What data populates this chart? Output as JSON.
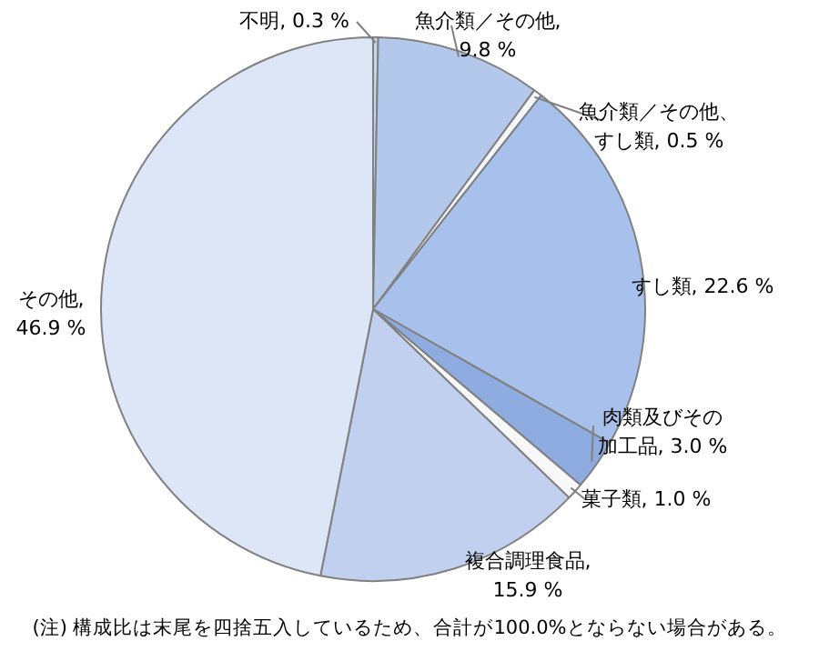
{
  "chart_data": {
    "type": "pie",
    "categories": [
      "不明",
      "魚介類／その他",
      "魚介類／その他、すし類",
      "すし類",
      "肉類及びその加工品",
      "菓子類",
      "複合調理食品",
      "その他"
    ],
    "values": [
      0.3,
      9.8,
      0.5,
      22.6,
      3.0,
      1.0,
      15.9,
      46.9
    ],
    "value_labels": [
      ", 0.3 %",
      ",\n9.8 %",
      ", 0.5 %",
      ", 22.6 %",
      ", 3.0 %",
      ", 1.0 %",
      ",\n15.9 %",
      ",\n46.9 %"
    ],
    "colors": [
      "#c8d4ec",
      "#b4c8ec",
      "#f4f7fc",
      "#a8c0ec",
      "#8eacdf",
      "#f8f8f8",
      "#c0d0ee",
      "#dce6f6"
    ],
    "legend": false,
    "annotations": [
      "(注) 構成比は末尾を四捨五入しているため、合計が100.0%とならない場合がある。"
    ]
  }
}
